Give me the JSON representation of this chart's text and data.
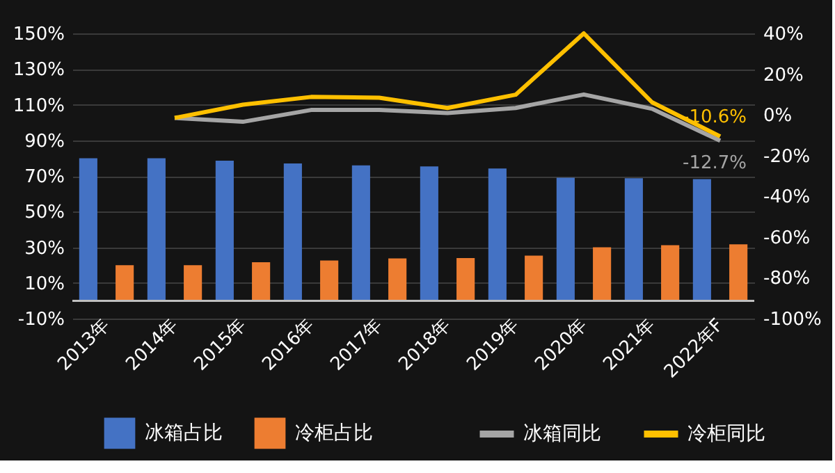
{
  "chart_data": {
    "type": "bar",
    "categories": [
      "2013年",
      "2014年",
      "2015年",
      "2016年",
      "2017年",
      "2018年",
      "2019年",
      "2020年",
      "2021年",
      "2022年F"
    ],
    "series": [
      {
        "name": "冰箱占比",
        "color": "#4472c4",
        "values": [
          80,
          80,
          78.6,
          77,
          76,
          75.4,
          74.2,
          69,
          68.7,
          68.2
        ]
      },
      {
        "name": "冷柜占比",
        "color": "#ed7d31",
        "values": [
          20,
          20,
          21.6,
          22.6,
          23.8,
          24,
          25.3,
          30,
          31.2,
          31.7
        ]
      },
      {
        "name": "冰箱同比",
        "color": "#a5a5a5",
        "type": "line",
        "axis": "y2",
        "values": [
          null,
          -1.5,
          -3.4,
          2.4,
          2.4,
          0.9,
          3.4,
          10,
          3,
          -12.7
        ],
        "value_labels": [
          null,
          null,
          null,
          null,
          null,
          null,
          null,
          null,
          null,
          "-12.7%"
        ]
      },
      {
        "name": "冷柜同比",
        "color": "#ffc000",
        "type": "line",
        "axis": "y2",
        "values": [
          null,
          -1.5,
          5,
          8.8,
          8.4,
          3.4,
          9.9,
          40,
          6.2,
          -10.6
        ],
        "value_labels": [
          null,
          null,
          null,
          null,
          null,
          null,
          null,
          null,
          null,
          "-10.6%"
        ]
      }
    ],
    "ylim": [
      -10,
      150
    ],
    "yticks": [
      {
        "value": -10,
        "label": "-10%"
      },
      {
        "value": 10,
        "label": "10%"
      },
      {
        "value": 30,
        "label": "30%"
      },
      {
        "value": 50,
        "label": "50%"
      },
      {
        "value": 70,
        "label": "70%"
      },
      {
        "value": 90,
        "label": "90%"
      },
      {
        "value": 110,
        "label": "110%"
      },
      {
        "value": 130,
        "label": "130%"
      },
      {
        "value": 150,
        "label": "150%"
      }
    ],
    "y2lim": [
      -100,
      40
    ],
    "y2ticks": [
      {
        "value": -100,
        "label": "-100%"
      },
      {
        "value": -80,
        "label": "-80%"
      },
      {
        "value": -60,
        "label": "-60%"
      },
      {
        "value": -40,
        "label": "-40%"
      },
      {
        "value": -20,
        "label": "-20%"
      },
      {
        "value": 0,
        "label": "0%"
      },
      {
        "value": 20,
        "label": "20%"
      },
      {
        "value": 40,
        "label": "40%"
      }
    ],
    "grid": "y",
    "legend": "bottom"
  }
}
